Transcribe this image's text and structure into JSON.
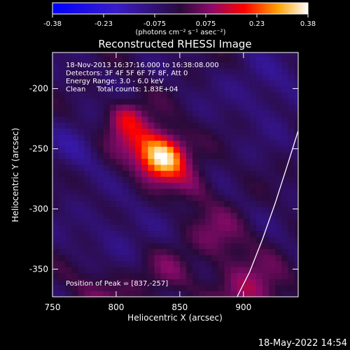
{
  "chart_data": {
    "type": "heatmap",
    "title": "Reconstructed RHESSI Image",
    "xlabel": "Heliocentric X (arcsec)",
    "ylabel": "Heliocentric Y (arcsec)",
    "xlim": [
      750,
      943
    ],
    "ylim": [
      -373,
      -170
    ],
    "xticks": [
      750,
      800,
      850,
      900
    ],
    "yticks": [
      -200,
      -250,
      -300,
      -350
    ],
    "colorbar": {
      "min": -0.38,
      "max": 0.38,
      "ticks": [
        "-0.38",
        "-0.23",
        "-0.075",
        "0.075",
        "0.23",
        "0.38"
      ],
      "unit_label": "(photons cm⁻² s⁻¹ asec⁻²)"
    },
    "annotations": [
      "18-Nov-2013 16:37:16.000 to 16:38:08.000",
      "Detectors: 3F 4F 5F 6F 7F 8F, Att 0",
      "Energy Range: 3.0 - 6.0 keV",
      "Clean     Total counts: 1.83E+04"
    ],
    "peak": {
      "label": "Position of Peak = [837,-257]",
      "x": 837,
      "y": -257
    },
    "sources": [
      {
        "x": 837,
        "y": -257,
        "sigma": 13,
        "amp": 0.38
      },
      {
        "x": 815,
        "y": -240,
        "sigma": 16,
        "amp": 0.16
      },
      {
        "x": 808,
        "y": -222,
        "sigma": 9,
        "amp": 0.11
      },
      {
        "x": 860,
        "y": -280,
        "sigma": 12,
        "amp": 0.09
      },
      {
        "x": 880,
        "y": -320,
        "sigma": 16,
        "amp": 0.1
      },
      {
        "x": 840,
        "y": -352,
        "sigma": 14,
        "amp": 0.08
      },
      {
        "x": 905,
        "y": -368,
        "sigma": 20,
        "amp": 0.14
      },
      {
        "x": 790,
        "y": -372,
        "sigma": 18,
        "amp": 0.09
      },
      {
        "x": 770,
        "y": -250,
        "sigma": 14,
        "amp": -0.07
      },
      {
        "x": 920,
        "y": -200,
        "sigma": 20,
        "amp": -0.06
      },
      {
        "x": 800,
        "y": -320,
        "sigma": 18,
        "amp": -0.05
      }
    ],
    "limb": [
      [
        895,
        -373
      ],
      [
        905,
        -352
      ],
      [
        915,
        -325
      ],
      [
        925,
        -295
      ],
      [
        935,
        -262
      ],
      [
        943,
        -235
      ]
    ]
  },
  "footer": {
    "date": "18-May-2022 14:54"
  }
}
